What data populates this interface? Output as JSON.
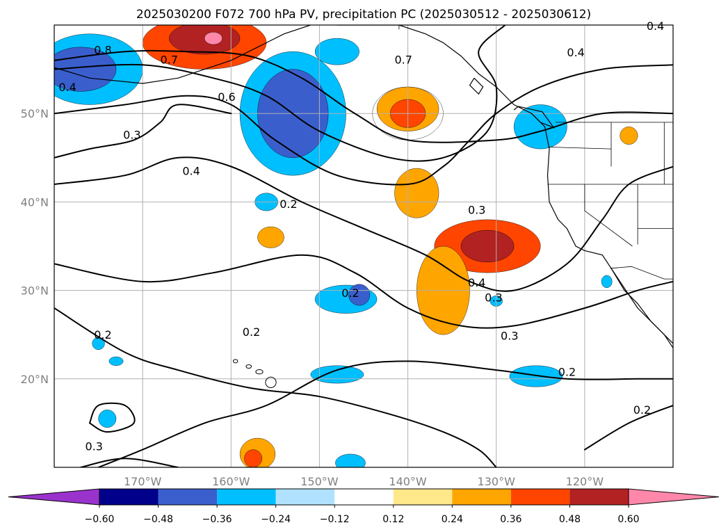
{
  "chart_data": {
    "type": "heatmap",
    "title": "2025030200 F072 700 hPa PV, precipitation PC (2025030512 - 2025030612)",
    "map": {
      "lon_range": [
        -180,
        -110
      ],
      "lat_range": [
        10,
        60
      ],
      "lon_ticks": [
        {
          "lon": -170,
          "label": "170°W"
        },
        {
          "lon": -160,
          "label": "160°W"
        },
        {
          "lon": -150,
          "label": "150°W"
        },
        {
          "lon": -140,
          "label": "140°W"
        },
        {
          "lon": -130,
          "label": "130°W"
        },
        {
          "lon": -120,
          "label": "120°W"
        }
      ],
      "lat_ticks": [
        {
          "lat": 20,
          "label": "20°N"
        },
        {
          "lat": 30,
          "label": "30°N"
        },
        {
          "lat": 40,
          "label": "40°N"
        },
        {
          "lat": 50,
          "label": "50°N"
        }
      ],
      "grid": true
    },
    "colorbar": {
      "orientation": "horizontal",
      "extend": "both",
      "levels": [
        -0.6,
        -0.48,
        -0.36,
        -0.24,
        -0.12,
        0.12,
        0.24,
        0.36,
        0.48,
        0.6
      ],
      "tick_labels": [
        "−0.60",
        "−0.48",
        "−0.36",
        "−0.24",
        "−0.12",
        "0.12",
        "0.24",
        "0.36",
        "0.48",
        "0.60"
      ],
      "colors": [
        "#9933cc",
        "#00008b",
        "#3a5fcd",
        "#00bfff",
        "#b0e2ff",
        "#ffffff",
        "#ffe88a",
        "#ffa500",
        "#ff4500",
        "#b22222",
        "#ff88aa"
      ]
    },
    "filled_regions": [
      {
        "lon": -163,
        "lat": 58,
        "rx": 7,
        "ry": 3,
        "value": 0.45
      },
      {
        "lon": -163,
        "lat": 58.5,
        "rx": 4,
        "ry": 1.8,
        "value": 0.55
      },
      {
        "lon": -162,
        "lat": 58.5,
        "rx": 1,
        "ry": 0.7,
        "value": 0.65
      },
      {
        "lon": -176,
        "lat": 55,
        "rx": 6,
        "ry": 4,
        "value": -0.3
      },
      {
        "lon": -177,
        "lat": 55,
        "rx": 4,
        "ry": 2.5,
        "value": -0.4
      },
      {
        "lon": -153,
        "lat": 50,
        "rx": 6,
        "ry": 7,
        "value": -0.28
      },
      {
        "lon": -153,
        "lat": 50,
        "rx": 4,
        "ry": 5,
        "value": -0.4
      },
      {
        "lon": -148,
        "lat": 57,
        "rx": 2.5,
        "ry": 1.5,
        "value": -0.26
      },
      {
        "lon": -140,
        "lat": 50,
        "rx": 4,
        "ry": 3,
        "value": -0.0
      },
      {
        "lon": -140,
        "lat": 50.5,
        "rx": 3.5,
        "ry": 2.5,
        "value": 0.3
      },
      {
        "lon": -140,
        "lat": 50,
        "rx": 2,
        "ry": 1.6,
        "value": 0.4
      },
      {
        "lon": -125,
        "lat": 48.5,
        "rx": 3,
        "ry": 2.5,
        "value": -0.28
      },
      {
        "lon": -139,
        "lat": 41,
        "rx": 2.5,
        "ry": 2.8,
        "value": 0.3
      },
      {
        "lon": -155.5,
        "lat": 36,
        "rx": 1.5,
        "ry": 1.2,
        "value": 0.3
      },
      {
        "lon": -131,
        "lat": 35,
        "rx": 6,
        "ry": 3,
        "value": 0.4
      },
      {
        "lon": -131,
        "lat": 35,
        "rx": 3,
        "ry": 1.8,
        "value": 0.5
      },
      {
        "lon": -136,
        "lat": 30,
        "rx": 3,
        "ry": 5,
        "value": 0.28
      },
      {
        "lon": -147,
        "lat": 29,
        "rx": 3.5,
        "ry": 1.6,
        "value": -0.28
      },
      {
        "lon": -145.5,
        "lat": 29.5,
        "rx": 1.2,
        "ry": 1.2,
        "value": -0.4
      },
      {
        "lon": -156,
        "lat": 40,
        "rx": 1.3,
        "ry": 1,
        "value": -0.3
      },
      {
        "lon": -125.5,
        "lat": 20.3,
        "rx": 3,
        "ry": 1.2,
        "value": -0.28
      },
      {
        "lon": -148,
        "lat": 20.5,
        "rx": 3,
        "ry": 1,
        "value": -0.26
      },
      {
        "lon": -146.5,
        "lat": 10.5,
        "rx": 1.7,
        "ry": 1,
        "value": -0.28
      },
      {
        "lon": -157,
        "lat": 11.5,
        "rx": 2,
        "ry": 1.8,
        "value": 0.3
      },
      {
        "lon": -157.5,
        "lat": 11,
        "rx": 1,
        "ry": 1,
        "value": 0.4
      },
      {
        "lon": -174,
        "lat": 15.5,
        "rx": 1,
        "ry": 1,
        "value": -0.28
      },
      {
        "lon": -175,
        "lat": 24,
        "rx": 0.7,
        "ry": 0.7,
        "value": -0.26
      },
      {
        "lon": -173,
        "lat": 22,
        "rx": 0.8,
        "ry": 0.5,
        "value": -0.26
      },
      {
        "lon": -115,
        "lat": 47.5,
        "rx": 1,
        "ry": 1,
        "value": 0.3
      },
      {
        "lon": -117.5,
        "lat": 31,
        "rx": 0.6,
        "ry": 0.7,
        "value": -0.26
      },
      {
        "lon": -130,
        "lat": 28.8,
        "rx": 0.7,
        "ry": 0.6,
        "value": -0.26
      }
    ],
    "pv_contours": [
      {
        "value": 0.8,
        "label": "0.8",
        "path": [
          [
            -180,
            56
          ],
          [
            -172,
            57
          ],
          [
            -165,
            57
          ],
          [
            -158,
            56.5
          ],
          [
            -152,
            54
          ],
          [
            -146,
            50
          ],
          [
            -140,
            47
          ],
          [
            -130,
            47
          ],
          [
            -125,
            48
          ],
          [
            -118,
            50
          ],
          [
            -110,
            50
          ]
        ]
      },
      {
        "value": 0.7,
        "label": "0.7",
        "path": [
          [
            -180,
            55
          ],
          [
            -170,
            55.5
          ],
          [
            -162,
            54
          ],
          [
            -156,
            52
          ],
          [
            -150,
            48
          ],
          [
            -142,
            45
          ],
          [
            -136,
            45
          ],
          [
            -131,
            48
          ],
          [
            -130,
            53
          ],
          [
            -132,
            57
          ],
          [
            -129,
            60
          ]
        ]
      },
      {
        "value": 0.6,
        "label": "0.6",
        "path": [
          [
            -180,
            50
          ],
          [
            -172,
            51
          ],
          [
            -165,
            52
          ],
          [
            -160,
            51
          ],
          [
            -155,
            47
          ],
          [
            -148,
            43
          ],
          [
            -140,
            42
          ],
          [
            -136,
            44
          ],
          [
            -133,
            47
          ],
          [
            -130,
            50
          ],
          [
            -125,
            53
          ],
          [
            -118,
            55
          ],
          [
            -110,
            55.5
          ]
        ]
      },
      {
        "value": 0.4,
        "label": "0.4",
        "path": [
          [
            -180,
            42
          ],
          [
            -172,
            43
          ],
          [
            -166,
            45
          ],
          [
            -160,
            44
          ],
          [
            -152,
            40
          ],
          [
            -145,
            37
          ],
          [
            -138,
            34
          ],
          [
            -133,
            31
          ],
          [
            -128,
            30
          ],
          [
            -122,
            33
          ],
          [
            -118,
            38
          ],
          [
            -115,
            42
          ],
          [
            -110,
            44
          ]
        ]
      },
      {
        "value": 0.3,
        "label": "0.3",
        "path": [
          [
            -180,
            45
          ],
          [
            -176,
            46
          ],
          [
            -171,
            47
          ],
          [
            -168,
            49
          ],
          [
            -166,
            51
          ],
          [
            -160,
            50
          ]
        ]
      },
      {
        "value": 0.3,
        "label": "0.3",
        "path": [
          [
            -180,
            33
          ],
          [
            -170,
            31
          ],
          [
            -162,
            32
          ],
          [
            -152,
            34
          ],
          [
            -146,
            32
          ],
          [
            -140,
            28
          ],
          [
            -134,
            26
          ],
          [
            -128,
            26
          ],
          [
            -120,
            28
          ],
          [
            -114,
            30
          ],
          [
            -110,
            31
          ]
        ]
      },
      {
        "value": 0.2,
        "label": "0.2",
        "path": [
          [
            -180,
            28
          ],
          [
            -172,
            23
          ],
          [
            -166,
            21
          ],
          [
            -158,
            19
          ],
          [
            -150,
            18
          ],
          [
            -142,
            16
          ],
          [
            -136,
            14
          ],
          [
            -132,
            12
          ],
          [
            -130,
            10
          ]
        ]
      },
      {
        "value": 0.2,
        "label": "0.2",
        "path": [
          [
            -175,
            10
          ],
          [
            -170,
            12
          ],
          [
            -163,
            15
          ],
          [
            -156,
            17
          ],
          [
            -148,
            21
          ],
          [
            -140,
            22
          ],
          [
            -130,
            21
          ],
          [
            -122,
            20
          ],
          [
            -114,
            20
          ],
          [
            -110,
            20
          ]
        ]
      },
      {
        "value": 0.3,
        "label": "0.3",
        "path": [
          [
            -176,
            15
          ],
          [
            -174,
            14
          ],
          [
            -171,
            15
          ],
          [
            -172,
            17
          ],
          [
            -175,
            17
          ],
          [
            -176,
            15
          ]
        ]
      },
      {
        "value": 0.3,
        "label": "0.3",
        "path": [
          [
            -177,
            10
          ],
          [
            -172,
            11
          ],
          [
            -166,
            10
          ]
        ]
      },
      {
        "value": 0.2,
        "label": "0.2",
        "path": [
          [
            -120,
            12
          ],
          [
            -115,
            15
          ],
          [
            -110,
            17
          ]
        ]
      }
    ],
    "contour_labels": [
      {
        "lon": -174.5,
        "lat": 56.9,
        "text": "0.8"
      },
      {
        "lon": -167,
        "lat": 55.8,
        "text": "0.7"
      },
      {
        "lon": -178.5,
        "lat": 52.7,
        "text": "0.4"
      },
      {
        "lon": -160.5,
        "lat": 51.6,
        "text": "0.6"
      },
      {
        "lon": -171.2,
        "lat": 47.3,
        "text": "0.3"
      },
      {
        "lon": -164.5,
        "lat": 43.2,
        "text": "0.4"
      },
      {
        "lon": -153.5,
        "lat": 39.5,
        "text": "0.2"
      },
      {
        "lon": -146.5,
        "lat": 29.4,
        "text": "0.2"
      },
      {
        "lon": -140.5,
        "lat": 55.8,
        "text": "0.7"
      },
      {
        "lon": -121,
        "lat": 56.6,
        "text": "0.4"
      },
      {
        "lon": -112,
        "lat": 59.6,
        "text": "0.4"
      },
      {
        "lon": -132.2,
        "lat": 38.8,
        "text": "0.3"
      },
      {
        "lon": -132.2,
        "lat": 30.6,
        "text": "0.4"
      },
      {
        "lon": -130.3,
        "lat": 28.9,
        "text": "0.3"
      },
      {
        "lon": -128.5,
        "lat": 24.6,
        "text": "0.3"
      },
      {
        "lon": -174.5,
        "lat": 24.7,
        "text": "0.2"
      },
      {
        "lon": -157.7,
        "lat": 25,
        "text": "0.2"
      },
      {
        "lon": -122,
        "lat": 20.5,
        "text": "0.2"
      },
      {
        "lon": -113.5,
        "lat": 16.2,
        "text": "0.2"
      },
      {
        "lon": -175.5,
        "lat": 12.1,
        "text": "0.3"
      }
    ],
    "coastlines": [
      [
        [
          -180,
          55.2
        ],
        [
          -176,
          54
        ],
        [
          -170,
          53.4
        ],
        [
          -166,
          54
        ],
        [
          -163,
          55
        ],
        [
          -160,
          56
        ],
        [
          -157,
          57.5
        ],
        [
          -154,
          59
        ],
        [
          -151,
          60
        ]
      ],
      [
        [
          -148,
          60
        ],
        [
          -145,
          60
        ],
        [
          -141,
          60
        ],
        [
          -138,
          59
        ],
        [
          -136,
          58
        ],
        [
          -134,
          56.5
        ],
        [
          -132,
          54.5
        ],
        [
          -130,
          53
        ],
        [
          -128,
          51
        ],
        [
          -126,
          50
        ],
        [
          -124.5,
          48.5
        ],
        [
          -124,
          46
        ],
        [
          -124.2,
          43
        ],
        [
          -124,
          40
        ],
        [
          -123,
          38
        ],
        [
          -122,
          37
        ],
        [
          -121,
          35
        ],
        [
          -120,
          34.5
        ],
        [
          -118,
          34
        ],
        [
          -117,
          32.5
        ],
        [
          -116,
          31
        ],
        [
          -115,
          29.5
        ],
        [
          -114,
          28
        ],
        [
          -112,
          26
        ],
        [
          -110,
          24
        ]
      ],
      [
        [
          -117,
          32.5
        ],
        [
          -115.5,
          30
        ],
        [
          -114,
          28.5
        ],
        [
          -112.5,
          26.5
        ],
        [
          -111,
          25
        ],
        [
          -110,
          23.5
        ]
      ],
      [
        [
          -126,
          50
        ],
        [
          -125,
          49
        ],
        [
          -123.5,
          48.4
        ],
        [
          -124.8,
          50.2
        ],
        [
          -127.5,
          50.8
        ],
        [
          -128,
          50.4
        ]
      ],
      [
        [
          -132.5,
          54
        ],
        [
          -131.5,
          53
        ],
        [
          -132,
          52.2
        ],
        [
          -133,
          53.2
        ],
        [
          -132.5,
          54
        ]
      ]
    ],
    "islands": [
      {
        "lon": -155.5,
        "lat": 19.6,
        "rx": 0.6,
        "ry": 0.6
      },
      {
        "lon": -156.8,
        "lat": 20.8,
        "rx": 0.4,
        "ry": 0.25
      },
      {
        "lon": -158,
        "lat": 21.4,
        "rx": 0.3,
        "ry": 0.2
      },
      {
        "lon": -159.5,
        "lat": 22,
        "rx": 0.25,
        "ry": 0.2
      }
    ],
    "borders": [
      [
        [
          -141,
          60
        ],
        [
          -141,
          59.5
        ]
      ],
      [
        [
          -123.3,
          49
        ],
        [
          -110,
          49
        ]
      ],
      [
        [
          -117.1,
          32.5
        ],
        [
          -114.7,
          32.7
        ],
        [
          -111,
          31.3
        ],
        [
          -110,
          31.3
        ]
      ],
      [
        [
          -120,
          42
        ],
        [
          -110,
          42
        ]
      ],
      [
        [
          -120,
          42
        ],
        [
          -120,
          39
        ],
        [
          -114.6,
          35
        ]
      ],
      [
        [
          -117,
          49
        ],
        [
          -117,
          44
        ]
      ],
      [
        [
          -111,
          49
        ],
        [
          -111,
          42
        ]
      ],
      [
        [
          -114,
          42
        ],
        [
          -114,
          35.2
        ]
      ],
      [
        [
          -114,
          37
        ],
        [
          -110,
          37
        ]
      ],
      [
        [
          -124.2,
          42
        ],
        [
          -120,
          42
        ]
      ],
      [
        [
          -124,
          46.2
        ],
        [
          -117,
          46
        ]
      ]
    ]
  }
}
